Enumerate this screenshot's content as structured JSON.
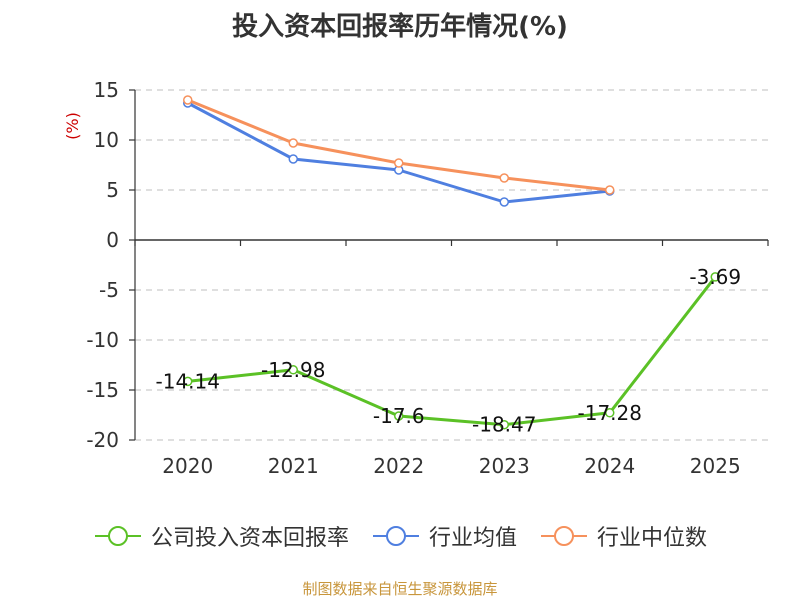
{
  "title": "投入资本回报率历年情况(%)",
  "source": "制图数据来自恒生聚源数据库",
  "colors": {
    "company": "#5bc126",
    "industry_avg": "#4f7fe0",
    "industry_median": "#f6915c",
    "axis": "#333333",
    "grid": "#cccccc",
    "ylabel": "#cc0000"
  },
  "chart_data": {
    "type": "line",
    "title": "投入资本回报率历年情况(%)",
    "xlabel": "",
    "ylabel": "(%)",
    "categories": [
      "2020",
      "2021",
      "2022",
      "2023",
      "2024",
      "2025"
    ],
    "ylim": [
      -20,
      15
    ],
    "yticks": [
      15,
      10,
      5,
      0,
      -5,
      -10,
      -15,
      -20
    ],
    "grid": true,
    "legend_position": "bottom",
    "series": [
      {
        "name": "公司投入资本回报率",
        "values": [
          -14.14,
          -12.98,
          -17.6,
          -18.47,
          -17.28,
          -3.69
        ],
        "labels": [
          "-14.14",
          "-12.98",
          "-17.6",
          "-18.47",
          "-17.28",
          "-3.69"
        ]
      },
      {
        "name": "行业均值",
        "values": [
          13.7,
          8.1,
          7.0,
          3.8,
          4.9,
          null
        ]
      },
      {
        "name": "行业中位数",
        "values": [
          14.0,
          9.7,
          7.7,
          6.2,
          5.0,
          null
        ]
      }
    ]
  }
}
